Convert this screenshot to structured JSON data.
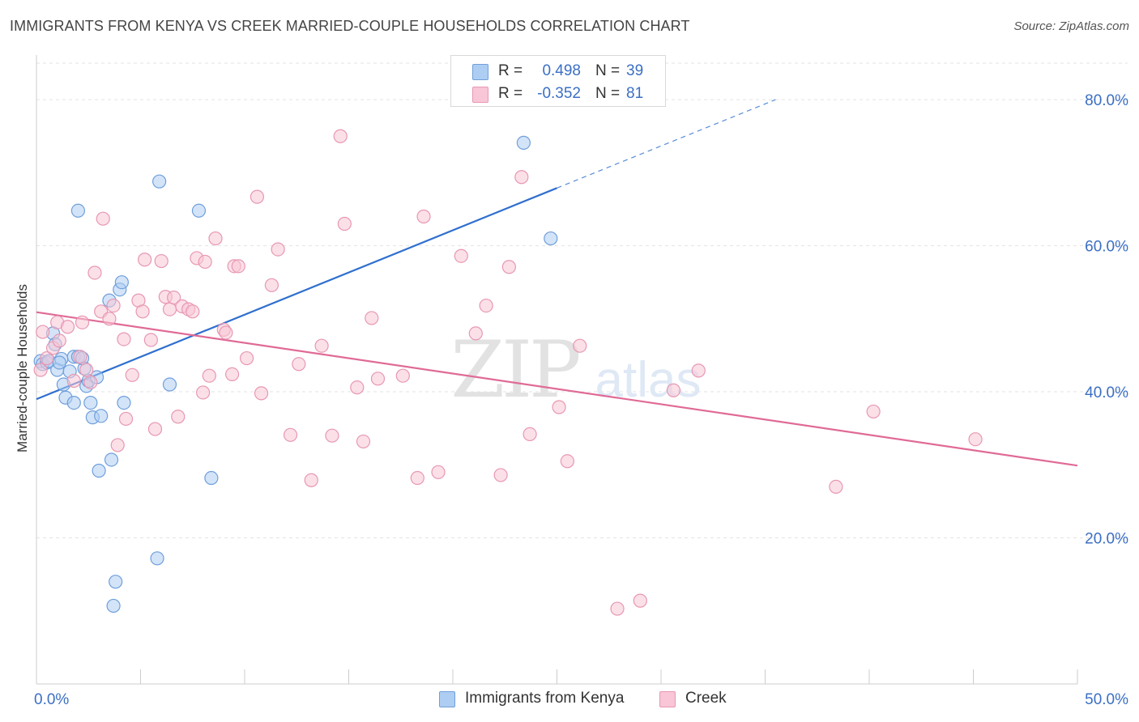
{
  "title": "IMMIGRANTS FROM KENYA VS CREEK MARRIED-COUPLE HOUSEHOLDS CORRELATION CHART",
  "source": "Source: ZipAtlas.com",
  "watermark": {
    "zip": "ZIP",
    "atlas": "atlas"
  },
  "colors": {
    "kenya_fill": "#aecdf2",
    "kenya_stroke": "#6f9fdc",
    "kenya_line": "#2f6fce",
    "creek_fill": "#f8c6d6",
    "creek_stroke": "#e897b2",
    "creek_line": "#e06a96",
    "grid": "#e3e3e3",
    "axis_text": "#3b6fc4"
  },
  "legend": {
    "kenya": {
      "r_label": "R =",
      "r_value": "0.498",
      "n_label": "N =",
      "n_value": "39"
    },
    "creek": {
      "r_label": "R =",
      "r_value": "-0.352",
      "n_label": "N =",
      "n_value": "81"
    }
  },
  "bottom_legend": {
    "kenya": "Immigrants from Kenya",
    "creek": "Creek"
  },
  "chart_data": {
    "type": "scatter",
    "ylabel": "Married-couple Households",
    "xlabel": "",
    "xlim": [
      0,
      50
    ],
    "ylim": [
      0,
      85
    ],
    "x_tick_labels": [
      {
        "value": 0,
        "label": "0.0%"
      },
      {
        "value": 50,
        "label": "50.0%"
      }
    ],
    "y_tick_labels": [
      {
        "value": 20,
        "label": "20.0%"
      },
      {
        "value": 40,
        "label": "40.0%"
      },
      {
        "value": 60,
        "label": "60.0%"
      },
      {
        "value": 80,
        "label": "80.0%"
      }
    ],
    "series": [
      {
        "name": "Immigrants from Kenya",
        "color_key": "kenya",
        "trend": {
          "x0": 0,
          "y0": 39.0,
          "x1": 25.0,
          "y1": 67.9,
          "dashed_to_x": 35.5,
          "dashed_to_y": 80.0
        },
        "points": [
          [
            0.2,
            44.2
          ],
          [
            0.3,
            43.8
          ],
          [
            0.5,
            44.0
          ],
          [
            0.6,
            44.2
          ],
          [
            0.8,
            48.0
          ],
          [
            0.9,
            46.5
          ],
          [
            1.0,
            43.0
          ],
          [
            1.2,
            44.5
          ],
          [
            1.3,
            41.0
          ],
          [
            1.4,
            39.2
          ],
          [
            1.6,
            42.8
          ],
          [
            1.8,
            44.8
          ],
          [
            1.8,
            38.5
          ],
          [
            2.0,
            44.8
          ],
          [
            2.0,
            64.8
          ],
          [
            2.3,
            43.2
          ],
          [
            2.4,
            40.8
          ],
          [
            2.5,
            41.5
          ],
          [
            2.6,
            38.5
          ],
          [
            2.7,
            36.5
          ],
          [
            2.9,
            42.0
          ],
          [
            3.0,
            29.2
          ],
          [
            3.1,
            36.7
          ],
          [
            3.5,
            52.5
          ],
          [
            3.6,
            30.7
          ],
          [
            3.8,
            14.0
          ],
          [
            3.7,
            10.7
          ],
          [
            4.0,
            54.0
          ],
          [
            4.1,
            55.0
          ],
          [
            4.2,
            38.5
          ],
          [
            5.8,
            17.2
          ],
          [
            5.9,
            68.8
          ],
          [
            6.4,
            41.0
          ],
          [
            7.8,
            64.8
          ],
          [
            8.4,
            28.2
          ],
          [
            23.4,
            74.1
          ],
          [
            24.7,
            61.0
          ],
          [
            1.1,
            44.0
          ],
          [
            2.2,
            44.6
          ]
        ]
      },
      {
        "name": "Creek",
        "color_key": "creek",
        "trend": {
          "x0": 0,
          "y0": 50.9,
          "x1": 50.0,
          "y1": 29.9
        },
        "points": [
          [
            0.2,
            43.0
          ],
          [
            0.3,
            48.2
          ],
          [
            0.5,
            44.6
          ],
          [
            0.8,
            46.0
          ],
          [
            1.0,
            49.5
          ],
          [
            1.1,
            47.0
          ],
          [
            1.5,
            48.9
          ],
          [
            1.8,
            41.5
          ],
          [
            2.2,
            49.5
          ],
          [
            2.1,
            44.8
          ],
          [
            2.4,
            43.0
          ],
          [
            2.6,
            41.3
          ],
          [
            2.8,
            56.3
          ],
          [
            3.1,
            51.0
          ],
          [
            3.2,
            63.7
          ],
          [
            3.5,
            50.0
          ],
          [
            3.7,
            51.8
          ],
          [
            3.9,
            32.7
          ],
          [
            4.2,
            47.2
          ],
          [
            4.3,
            36.3
          ],
          [
            4.6,
            42.3
          ],
          [
            4.9,
            52.5
          ],
          [
            5.1,
            51.0
          ],
          [
            5.2,
            58.1
          ],
          [
            5.5,
            47.1
          ],
          [
            5.7,
            34.9
          ],
          [
            6.0,
            57.9
          ],
          [
            6.2,
            53.0
          ],
          [
            6.4,
            51.3
          ],
          [
            6.6,
            52.9
          ],
          [
            6.8,
            36.6
          ],
          [
            7.0,
            51.7
          ],
          [
            7.3,
            51.3
          ],
          [
            7.5,
            51.0
          ],
          [
            7.7,
            58.3
          ],
          [
            8.0,
            39.9
          ],
          [
            8.1,
            57.8
          ],
          [
            8.3,
            42.2
          ],
          [
            8.6,
            61.0
          ],
          [
            9.0,
            48.5
          ],
          [
            9.1,
            48.1
          ],
          [
            9.5,
            57.2
          ],
          [
            9.7,
            57.2
          ],
          [
            10.1,
            44.6
          ],
          [
            10.6,
            66.7
          ],
          [
            10.8,
            39.8
          ],
          [
            11.3,
            54.6
          ],
          [
            11.6,
            59.5
          ],
          [
            12.2,
            34.1
          ],
          [
            12.6,
            43.8
          ],
          [
            13.2,
            27.9
          ],
          [
            13.7,
            46.3
          ],
          [
            14.2,
            34.0
          ],
          [
            14.6,
            75.0
          ],
          [
            14.8,
            63.0
          ],
          [
            15.4,
            40.6
          ],
          [
            15.7,
            33.2
          ],
          [
            16.1,
            50.1
          ],
          [
            16.4,
            41.8
          ],
          [
            17.6,
            42.2
          ],
          [
            18.3,
            28.2
          ],
          [
            18.6,
            64.0
          ],
          [
            19.3,
            29.0
          ],
          [
            20.4,
            58.6
          ],
          [
            21.1,
            48.0
          ],
          [
            21.6,
            51.8
          ],
          [
            22.3,
            28.6
          ],
          [
            22.7,
            57.1
          ],
          [
            23.3,
            69.4
          ],
          [
            23.7,
            34.2
          ],
          [
            25.1,
            37.9
          ],
          [
            25.5,
            30.5
          ],
          [
            26.1,
            46.3
          ],
          [
            27.9,
            10.3
          ],
          [
            29.0,
            11.4
          ],
          [
            30.6,
            40.2
          ],
          [
            31.8,
            42.9
          ],
          [
            38.4,
            27.0
          ],
          [
            40.2,
            37.3
          ],
          [
            45.1,
            33.5
          ],
          [
            9.4,
            42.4
          ]
        ]
      }
    ]
  }
}
